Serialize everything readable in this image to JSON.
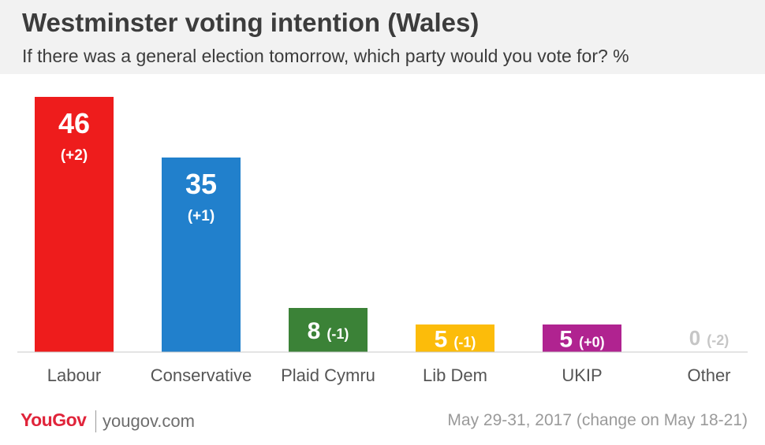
{
  "title": "Westminster voting intention (Wales)",
  "subtitle": "If there was a general election tomorrow, which party would you vote for? %",
  "chart_data": {
    "type": "bar",
    "title": "Westminster voting intention (Wales)",
    "subtitle": "If there was a general election tomorrow, which party would you vote for? %",
    "categories": [
      "Labour",
      "Conservative",
      "Plaid Cymru",
      "Lib Dem",
      "UKIP",
      "Other"
    ],
    "values": [
      46,
      35,
      8,
      5,
      5,
      0
    ],
    "changes": [
      "(+2)",
      "(+1)",
      "(-1)",
      "(-1)",
      "(+0)",
      "(-2)"
    ],
    "colors": [
      "#ee1c1c",
      "#2180cc",
      "#3b8237",
      "#fcbc0a",
      "#b02390",
      "#cccccc"
    ],
    "ylim": [
      0,
      46
    ],
    "grid": false,
    "legend": "none"
  },
  "footer": {
    "brand": "YouGov",
    "website": "yougov.com",
    "date": "May 29-31, 2017 (change on May 18-21)"
  }
}
